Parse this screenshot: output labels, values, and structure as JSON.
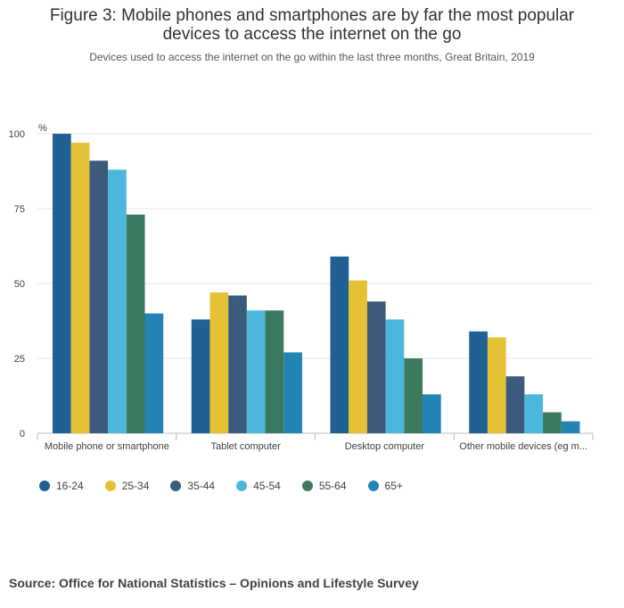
{
  "title_lines": [
    "Figure 3: Mobile phones and smartphones are by far the most popular",
    "devices to access the internet on the go"
  ],
  "subtitle": "Devices used to access the internet on the go within the last three months, Great Britain, 2019",
  "source": "Source: Office for National Statistics – Opinions and Lifestyle Survey",
  "chart_data": {
    "type": "bar",
    "ylabel": "%",
    "ylim": [
      0,
      100
    ],
    "yticks": [
      0,
      25,
      50,
      75,
      100
    ],
    "grid": true,
    "legend_position": "bottom",
    "categories": [
      "Mobile phone or smartphone",
      "Tablet computer",
      "Desktop computer",
      "Other mobile devices (eg m..."
    ],
    "series": [
      {
        "name": "16-24",
        "color": "#206095",
        "values": [
          100,
          38,
          59,
          34
        ]
      },
      {
        "name": "25-34",
        "color": "#e5c135",
        "values": [
          97,
          47,
          51,
          32
        ]
      },
      {
        "name": "35-44",
        "color": "#3c5b7c",
        "values": [
          91,
          46,
          44,
          19
        ]
      },
      {
        "name": "45-54",
        "color": "#4bb7dd",
        "values": [
          88,
          41,
          38,
          13
        ]
      },
      {
        "name": "55-64",
        "color": "#3b7a5e",
        "values": [
          73,
          41,
          25,
          7
        ]
      },
      {
        "name": "65+",
        "color": "#2385b3",
        "values": [
          40,
          27,
          13,
          4
        ]
      }
    ]
  }
}
